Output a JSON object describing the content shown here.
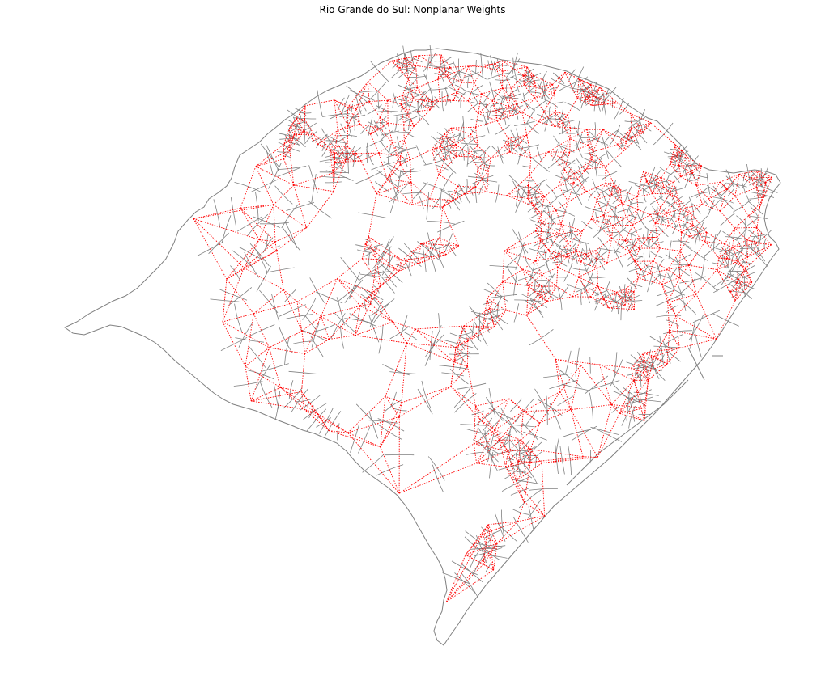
{
  "title": "Rio Grande do Sul: Nonplanar Weights",
  "colors": {
    "boundary": "#808080",
    "weights": "#ff0000",
    "background": "#ffffff"
  },
  "legend": null
}
